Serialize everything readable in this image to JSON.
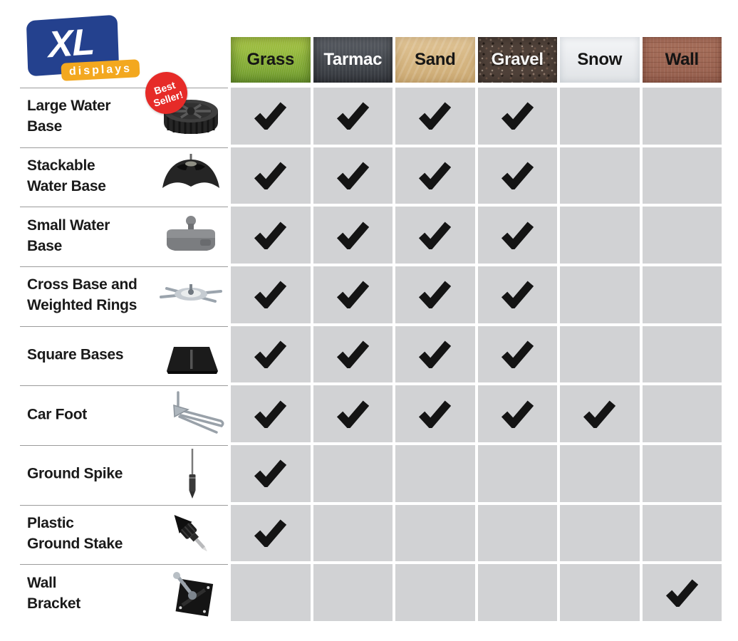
{
  "logo": {
    "primary": "XL",
    "secondary": "displays"
  },
  "best_seller_badge": {
    "line1": "Best",
    "line2": "Seller!"
  },
  "icons": {
    "check_icon": "✔"
  },
  "colors": {
    "cell_bg": "#d1d2d4",
    "check": "#141414",
    "logo_blue": "#24418e",
    "logo_orange": "#f3a81f",
    "badge_red": "#e62b28",
    "separator": "#9b9b9b"
  },
  "chart_data": {
    "type": "table",
    "columns": [
      {
        "label": "Grass",
        "key": "grass",
        "text_color": "#161616"
      },
      {
        "label": "Tarmac",
        "key": "tarmac",
        "text_color": "#ffffff"
      },
      {
        "label": "Sand",
        "key": "sand",
        "text_color": "#161616"
      },
      {
        "label": "Gravel",
        "key": "gravel",
        "text_color": "#f5f5f5"
      },
      {
        "label": "Snow",
        "key": "snow",
        "text_color": "#161616"
      },
      {
        "label": "Wall",
        "key": "wall",
        "text_color": "#141414"
      }
    ],
    "rows": [
      {
        "label": "Large Water Base",
        "label_lines": [
          "Large Water",
          "Base"
        ],
        "image": "large-water-base",
        "best_seller": true,
        "checks": [
          true,
          true,
          true,
          true,
          false,
          false
        ]
      },
      {
        "label": "Stackable Water Base",
        "label_lines": [
          "Stackable",
          "Water Base"
        ],
        "image": "stackable-water-base",
        "best_seller": false,
        "checks": [
          true,
          true,
          true,
          true,
          false,
          false
        ]
      },
      {
        "label": "Small Water Base",
        "label_lines": [
          "Small Water",
          "Base"
        ],
        "image": "small-water-base",
        "best_seller": false,
        "checks": [
          true,
          true,
          true,
          true,
          false,
          false
        ]
      },
      {
        "label": "Cross Base and Weighted Rings",
        "label_lines": [
          "Cross Base and",
          "Weighted Rings"
        ],
        "image": "cross-base",
        "best_seller": false,
        "checks": [
          true,
          true,
          true,
          true,
          false,
          false
        ]
      },
      {
        "label": "Square Bases",
        "label_lines": [
          "Square Bases"
        ],
        "image": "square-base",
        "best_seller": false,
        "checks": [
          true,
          true,
          true,
          true,
          false,
          false
        ]
      },
      {
        "label": "Car Foot",
        "label_lines": [
          "Car Foot"
        ],
        "image": "car-foot",
        "best_seller": false,
        "checks": [
          true,
          true,
          true,
          true,
          true,
          false
        ]
      },
      {
        "label": "Ground Spike",
        "label_lines": [
          "Ground Spike"
        ],
        "image": "ground-spike",
        "best_seller": false,
        "checks": [
          true,
          false,
          false,
          false,
          false,
          false
        ]
      },
      {
        "label": "Plastic Ground Stake",
        "label_lines": [
          "Plastic",
          "Ground Stake"
        ],
        "image": "plastic-ground-stake",
        "best_seller": false,
        "checks": [
          true,
          false,
          false,
          false,
          false,
          false
        ]
      },
      {
        "label": "Wall Bracket",
        "label_lines": [
          "Wall",
          "Bracket"
        ],
        "image": "wall-bracket",
        "best_seller": false,
        "checks": [
          false,
          false,
          false,
          false,
          false,
          true
        ]
      }
    ]
  }
}
